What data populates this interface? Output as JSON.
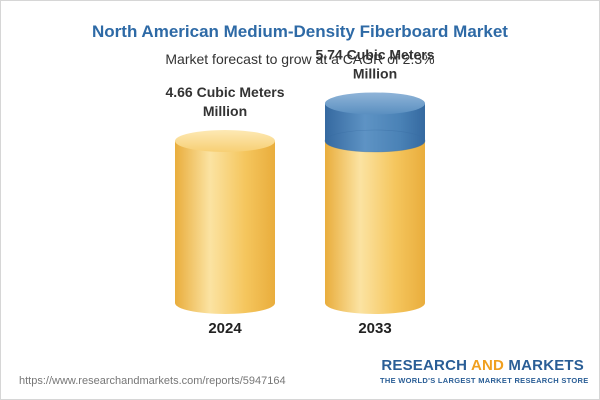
{
  "chart_data": {
    "type": "bar",
    "title": "North American Medium-Density Fiberboard Market",
    "subtitle": "Market forecast to grow at a CAGR of 2.3%",
    "categories": [
      "2024",
      "2033"
    ],
    "values": [
      4.66,
      5.74
    ],
    "value_labels": [
      "4.66 Cubic Meters Million",
      "5.74 Cubic Meters Million"
    ],
    "value_label_lines": [
      [
        "4.66 Cubic Meters",
        "Million"
      ],
      [
        "5.74 Cubic Meters",
        "Million"
      ]
    ],
    "unit": "Cubic Meters Million",
    "cagr": "2.3%",
    "colors": {
      "base": "#f5c65e",
      "base_light": "#fbe3a2",
      "base_dark": "#e9ad3c",
      "growth": "#4a82b6",
      "growth_light": "#8fb4d8",
      "growth_dark": "#3569a0"
    }
  },
  "footer": {
    "url": "https://www.researchandmarkets.com/reports/5947164",
    "brand_part1": "RESEARCH ",
    "brand_part2": "AND",
    "brand_part3": " MARKETS",
    "tagline": "THE WORLD'S LARGEST MARKET RESEARCH STORE"
  }
}
